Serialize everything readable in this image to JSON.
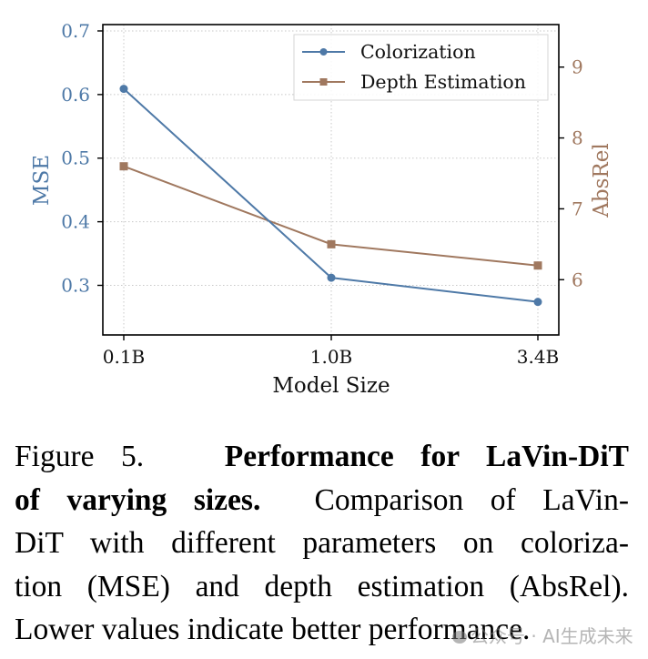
{
  "chart_data": {
    "type": "line",
    "title": "",
    "xlabel": "Model Size",
    "categories": [
      "0.1B",
      "1.0B",
      "3.4B"
    ],
    "left_axis": {
      "label": "MSE",
      "color": "#4e79a7",
      "ticks": [
        "0.3",
        "0.4",
        "0.5",
        "0.6",
        "0.7"
      ],
      "tick_values": [
        0.3,
        0.4,
        0.5,
        0.6,
        0.7
      ],
      "ylim": [
        0.222,
        0.71
      ]
    },
    "right_axis": {
      "label": "AbsRel",
      "color": "#a0785f",
      "ticks": [
        "6",
        "7",
        "8",
        "9"
      ],
      "tick_values": [
        6,
        7,
        8,
        9
      ],
      "ylim": [
        5.22,
        9.6
      ]
    },
    "series": [
      {
        "name": "Colorization",
        "axis": "left",
        "marker": "circle",
        "color": "#4e79a7",
        "values": [
          0.609,
          0.312,
          0.274
        ]
      },
      {
        "name": "Depth Estimation",
        "axis": "right",
        "marker": "square",
        "color": "#a0785f",
        "values": [
          7.6,
          6.5,
          6.2
        ]
      }
    ],
    "grid": true,
    "grid_style": "dotted",
    "legend": {
      "placement": "top-right",
      "entries": [
        "Colorization",
        "Depth Estimation"
      ]
    }
  },
  "caption": {
    "figure_label": "Figure 5.",
    "bold_title": "Performance for LaVin-DiT of varying sizes.",
    "lines": [
      {
        "normal_pre": "Figure 5.",
        "bold": "Performance for LaVin-DiT",
        "normal_post": ""
      },
      {
        "normal_pre": "",
        "bold": "of varying sizes.",
        "normal_post": "Comparison of LaVin-"
      },
      {
        "normal_pre": "DiT with different parameters on coloriza-",
        "bold": "",
        "normal_post": ""
      },
      {
        "normal_pre": "tion (MSE) and depth estimation (AbsRel).",
        "bold": "",
        "normal_post": ""
      },
      {
        "normal_pre": "Lower values indicate better performance.",
        "bold": "",
        "normal_post": ""
      }
    ],
    "body": "Comparison of LaVin-DiT with different parameters on colorization (MSE) and depth estimation (AbsRel). Lower values indicate better performance."
  },
  "watermark": {
    "text": "公众号 · AI生成未来",
    "icon": "wechat-icon"
  }
}
